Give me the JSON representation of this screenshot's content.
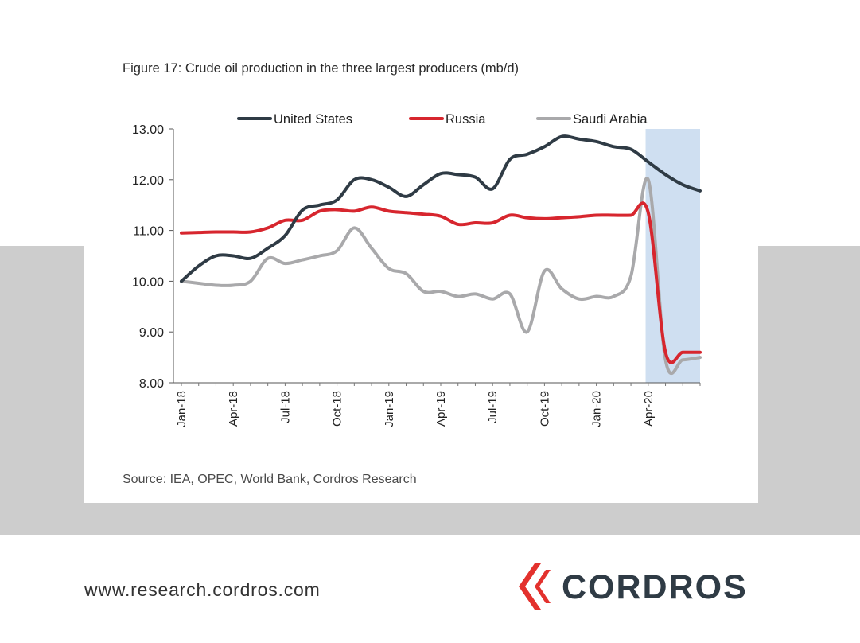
{
  "figure_title": "Figure 17: Crude oil production in the three largest producers (mb/d)",
  "source": "Source: IEA, OPEC, World Bank, Cordros Research",
  "footer": {
    "url": "www.research.cordros.com",
    "brand": "CORDROS"
  },
  "colors": {
    "us": "#2f3b45",
    "russia": "#d7262e",
    "saudi": "#a9a9ab",
    "highlight": "#cfdff1",
    "brand_red": "#e3312d",
    "brand_dark": "#2f3b45"
  },
  "chart_data": {
    "type": "line",
    "title": "Figure 17: Crude oil production in the three largest producers (mb/d)",
    "xlabel": "",
    "ylabel": "",
    "ylim": [
      8.0,
      13.0
    ],
    "yticks": [
      "8.00",
      "9.00",
      "10.00",
      "11.00",
      "12.00",
      "13.00"
    ],
    "x": [
      "Jan-18",
      "Feb-18",
      "Mar-18",
      "Apr-18",
      "May-18",
      "Jun-18",
      "Jul-18",
      "Aug-18",
      "Sep-18",
      "Oct-18",
      "Nov-18",
      "Dec-18",
      "Jan-19",
      "Feb-19",
      "Mar-19",
      "Apr-19",
      "May-19",
      "Jun-19",
      "Jul-19",
      "Aug-19",
      "Sep-19",
      "Oct-19",
      "Nov-19",
      "Dec-19",
      "Jan-20",
      "Feb-20",
      "Mar-20",
      "Apr-20",
      "May-20",
      "Jun-20",
      "Jul-20"
    ],
    "xtick_labels": [
      "Jan-18",
      "Apr-18",
      "Jul-18",
      "Oct-18",
      "Jan-19",
      "Apr-19",
      "Jul-19",
      "Oct-19",
      "Jan-20",
      "Apr-20"
    ],
    "legend_position": "top",
    "grid": false,
    "highlight_region": [
      "Apr-20",
      "Jul-20"
    ],
    "series": [
      {
        "name": "United States",
        "color": "#2f3b45",
        "values": [
          10.0,
          10.3,
          10.5,
          10.5,
          10.45,
          10.65,
          10.9,
          11.4,
          11.5,
          11.6,
          12.0,
          12.0,
          11.85,
          11.67,
          11.9,
          12.12,
          12.1,
          12.05,
          11.82,
          12.4,
          12.5,
          12.65,
          12.85,
          12.8,
          12.75,
          12.65,
          12.6,
          12.35,
          12.1,
          11.9,
          11.78
        ]
      },
      {
        "name": "Russia",
        "color": "#d7262e",
        "values": [
          10.95,
          10.96,
          10.97,
          10.97,
          10.97,
          11.05,
          11.2,
          11.2,
          11.38,
          11.41,
          11.38,
          11.46,
          11.38,
          11.35,
          11.32,
          11.28,
          11.12,
          11.15,
          11.15,
          11.3,
          11.25,
          11.23,
          11.25,
          11.27,
          11.3,
          11.3,
          11.3,
          11.35,
          8.6,
          8.6,
          8.6
        ]
      },
      {
        "name": "Saudi Arabia",
        "color": "#a9a9ab",
        "values": [
          10.0,
          9.96,
          9.92,
          9.92,
          10.0,
          10.45,
          10.35,
          10.42,
          10.5,
          10.6,
          11.05,
          10.65,
          10.25,
          10.15,
          9.8,
          9.8,
          9.7,
          9.75,
          9.65,
          9.75,
          9.0,
          10.2,
          9.85,
          9.65,
          9.7,
          9.7,
          10.1,
          12.0,
          8.45,
          8.45,
          8.5
        ]
      }
    ]
  }
}
